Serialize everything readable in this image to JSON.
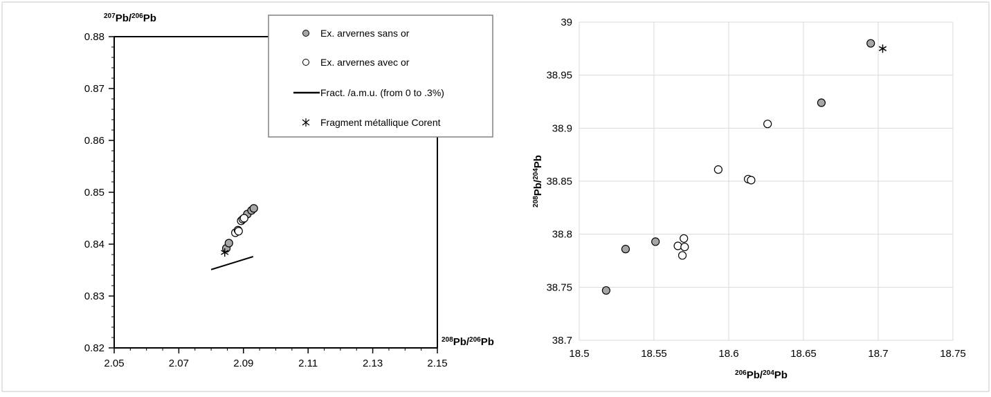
{
  "chart_data": [
    {
      "type": "scatter",
      "title": "",
      "xlabel": {
        "base": "Pb/",
        "iso1": "208",
        "iso2": "206",
        "tail": "Pb"
      },
      "ylabel": {
        "base": "Pb/",
        "iso1": "207",
        "iso2": "206",
        "tail": "Pb"
      },
      "xlim": [
        2.05,
        2.15
      ],
      "ylim": [
        0.82,
        0.88
      ],
      "xticks": [
        "2.05",
        "2.07",
        "2.09",
        "2.11",
        "2.13",
        "2.15"
      ],
      "yticks": [
        "0.82",
        "0.83",
        "0.84",
        "0.85",
        "0.86",
        "0.87",
        "0.88"
      ],
      "grid": false,
      "legend_position": "top-right",
      "series": [
        {
          "name": "Ex. arvernes sans or",
          "marker": "gray-circle",
          "color": "#a6a6a6",
          "points": [
            [
              2.0847,
              0.8392
            ],
            [
              2.0855,
              0.8402
            ],
            [
              2.0912,
              0.8458
            ],
            [
              2.0925,
              0.8465
            ],
            [
              2.0932,
              0.8469
            ]
          ]
        },
        {
          "name": "Ex. arvernes avec or",
          "marker": "open-circle",
          "color": "#ffffff",
          "points": [
            [
              2.0875,
              0.8422
            ],
            [
              2.0883,
              0.8427
            ],
            [
              2.0885,
              0.8425
            ],
            [
              2.0893,
              0.8445
            ],
            [
              2.0898,
              0.8448
            ],
            [
              2.0902,
              0.845
            ]
          ]
        },
        {
          "name": "Fract. /a.m.u. (from 0 to .3%)",
          "marker": "line",
          "color": "#000000",
          "points": [
            [
              2.08,
              0.8351
            ],
            [
              2.093,
              0.8376
            ]
          ]
        },
        {
          "name": "Fragment métallique Corent",
          "marker": "star",
          "color": "#000000",
          "points": [
            [
              2.0842,
              0.8384
            ]
          ]
        }
      ]
    },
    {
      "type": "scatter",
      "title": "",
      "xlabel": {
        "base": "Pb/",
        "iso1": "206",
        "iso2": "204",
        "tail": "Pb"
      },
      "ylabel": {
        "base": "Pb/",
        "iso1": "208",
        "iso2": "204",
        "tail": "Pb"
      },
      "xlim": [
        18.5,
        18.75
      ],
      "ylim": [
        38.7,
        39.0
      ],
      "xticks": [
        "18.5",
        "18.55",
        "18.6",
        "18.65",
        "18.7",
        "18.75"
      ],
      "yticks": [
        "38.7",
        "38.75",
        "38.8",
        "38.85",
        "38.9",
        "38.95",
        "39"
      ],
      "grid": true,
      "series": [
        {
          "marker": "gray-circle",
          "color": "#a6a6a6",
          "points": [
            [
              18.518,
              38.747
            ],
            [
              18.531,
              38.786
            ],
            [
              18.551,
              38.793
            ],
            [
              18.662,
              38.924
            ],
            [
              18.695,
              38.98
            ]
          ]
        },
        {
          "marker": "open-circle",
          "color": "#ffffff",
          "points": [
            [
              18.566,
              38.789
            ],
            [
              18.569,
              38.78
            ],
            [
              18.57,
              38.796
            ],
            [
              18.5705,
              38.788
            ],
            [
              18.593,
              38.861
            ],
            [
              18.613,
              38.852
            ],
            [
              18.615,
              38.851
            ],
            [
              18.626,
              38.904
            ]
          ]
        },
        {
          "marker": "star",
          "color": "#000000",
          "points": [
            [
              18.703,
              38.975
            ]
          ]
        }
      ]
    }
  ]
}
